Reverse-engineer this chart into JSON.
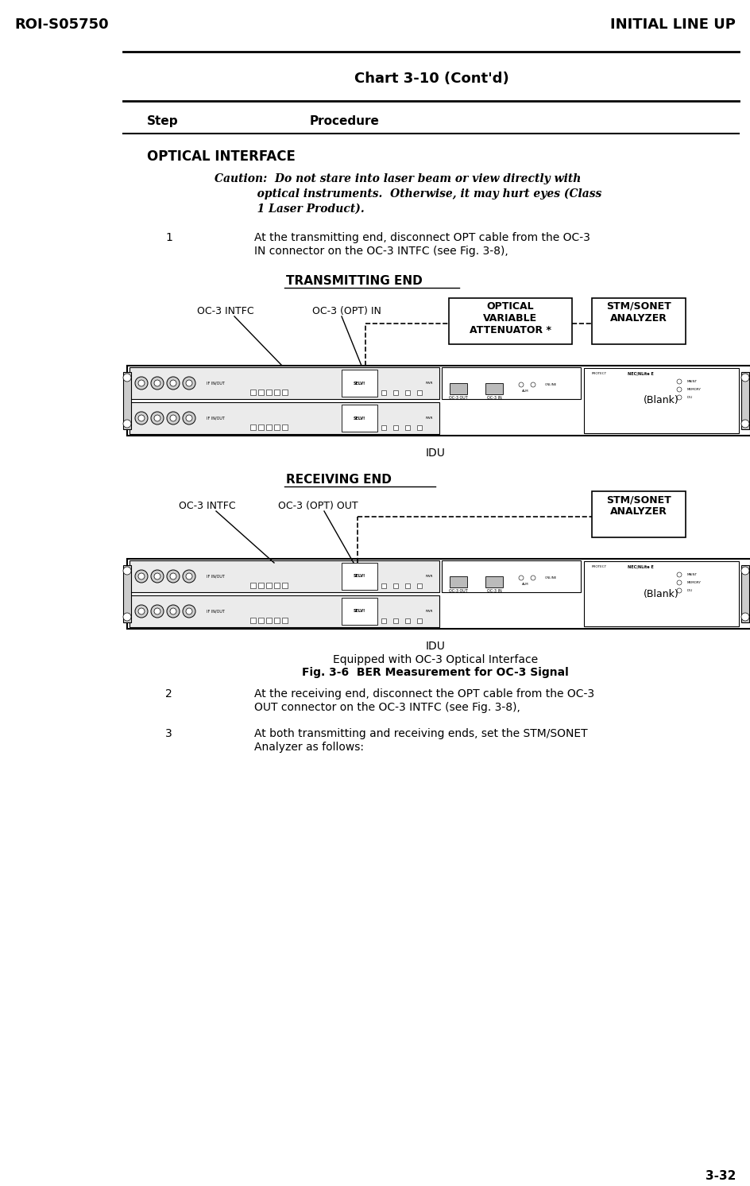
{
  "bg_color": "#ffffff",
  "header_left": "ROI-S05750",
  "header_right": "INITIAL LINE UP",
  "chart_title": "Chart 3-10 (Cont'd)",
  "col1_header": "Step",
  "col2_header": "Procedure",
  "footer_page": "3-32",
  "section_title": "OPTICAL INTERFACE",
  "caution_lines": [
    "Caution:  Do not stare into laser beam or view directly with",
    "           optical instruments.  Otherwise, it may hurt eyes (Class",
    "           1 Laser Product)."
  ],
  "step1_num": "1",
  "step1_lines": [
    "At the transmitting end, disconnect OPT cable from the OC-3",
    "IN connector on the OC-3 INTFC (see Fig. 3-8),"
  ],
  "transmitting_label": "TRANSMITTING END",
  "oc3_intfc_label_tx": "OC-3 INTFC",
  "oc3_opt_in_label": "OC-3 (OPT) IN",
  "optical_var_label": "OPTICAL\nVARIABLE\nATTENUATOR *",
  "stm_sonet_label_tx": "STM/SONET\nANALYZER",
  "blank_label_tx": "(Blank)",
  "idu_label_tx": "IDU",
  "receiving_label": "RECEIVING END",
  "oc3_intfc_label_rx": "OC-3 INTFC",
  "oc3_opt_out_label": "OC-3 (OPT) OUT",
  "stm_sonet_label_rx": "STM/SONET\nANALYZER",
  "blank_label_rx": "(Blank)",
  "idu_label_rx": "IDU",
  "fig_caption1": "Equipped with OC-3 Optical Interface",
  "fig_caption2": "Fig. 3-6  BER Measurement for OC-3 Signal",
  "step2_num": "2",
  "step2_lines": [
    "At the receiving end, disconnect the OPT cable from the OC-3",
    "OUT connector on the OC-3 INTFC (see Fig. 3-8),"
  ],
  "step3_num": "3",
  "step3_lines": [
    "At both transmitting and receiving ends, set the STM/SONET",
    "Analyzer as follows:"
  ]
}
